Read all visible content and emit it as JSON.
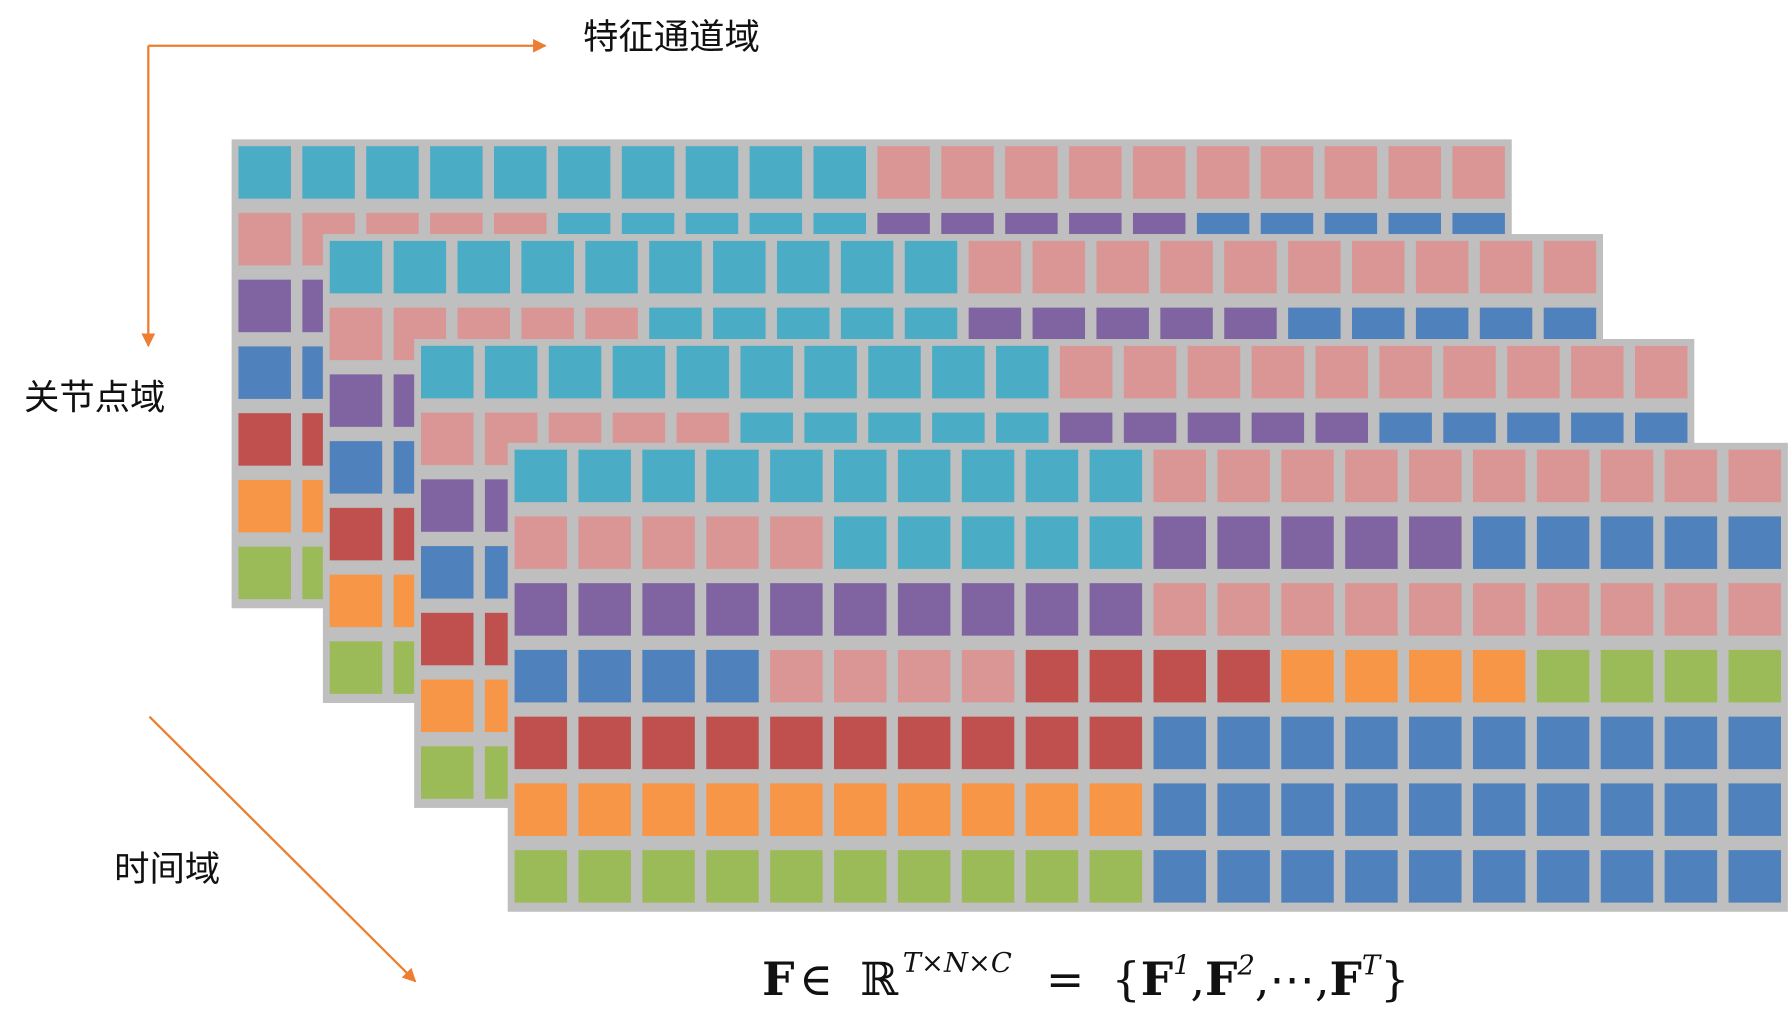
{
  "axis_labels": {
    "channel": "特征通道域",
    "joint": "关节点域",
    "time": "时间域"
  },
  "formula": {
    "symbol": "F",
    "relation": "∈",
    "field": "ℝ",
    "dims": "T×N×C",
    "equals": "=",
    "open": "{",
    "close": "}",
    "separator": ",",
    "items": [
      {
        "base": "F",
        "sup": "1"
      },
      {
        "base": "F",
        "sup": "2"
      },
      {
        "ellipsis": "⋯"
      },
      {
        "base": "F",
        "sup": "T"
      }
    ]
  }
}
